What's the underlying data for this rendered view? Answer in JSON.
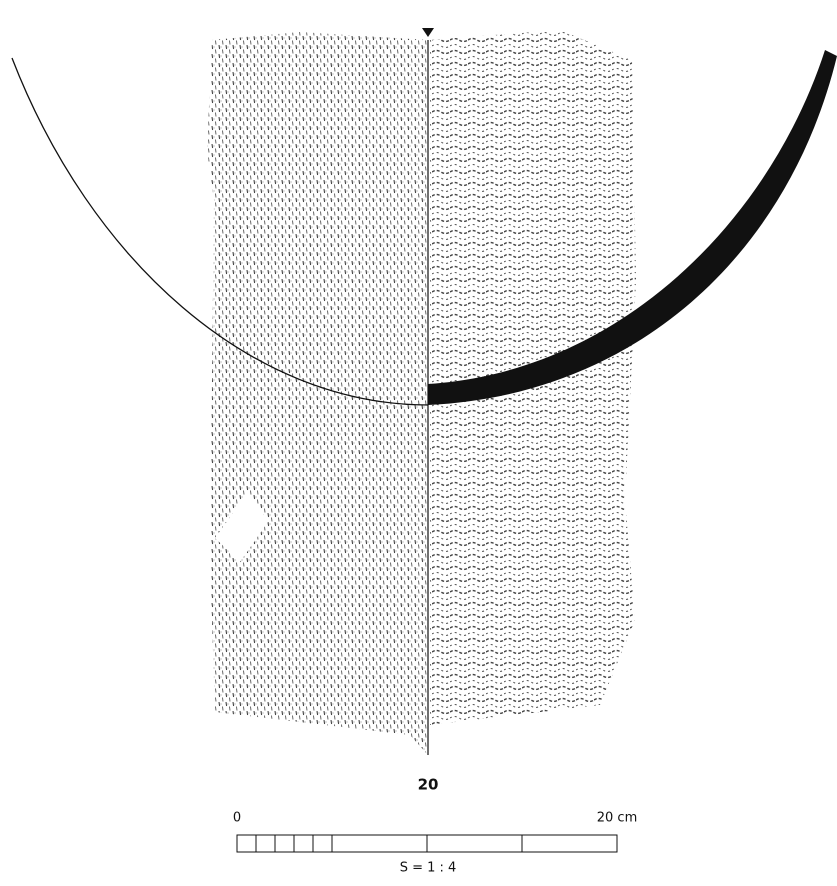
{
  "figure": {
    "number": "20"
  },
  "scale": {
    "start": "0",
    "end": "20 cm",
    "ratio": "S = 1 : 4"
  }
}
